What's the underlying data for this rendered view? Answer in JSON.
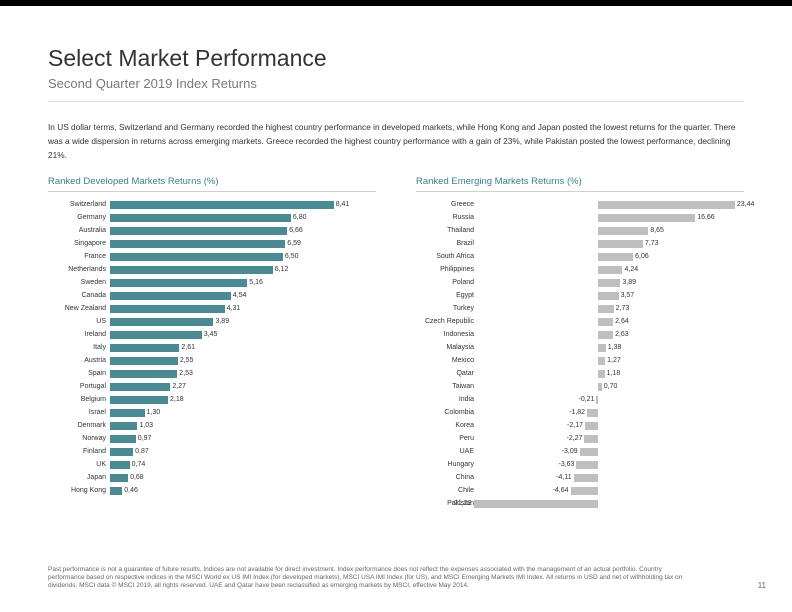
{
  "page": {
    "title": "Select Market Performance",
    "subtitle": "Second Quarter 2019 Index Returns",
    "intro": "In US dollar terms, Switzerland and Germany recorded the highest country performance in developed markets, while Hong Kong and Japan posted the lowest returns for the quarter. There was a wide dispersion in returns across emerging markets. Greece recorded the highest country performance with a gain of 23%, while Pakistan posted the lowest performance, declining 21%.",
    "footnote": "Past performance is not a guarantee of future results. Indices are not available for direct investment. Index performance does not reflect the expenses associated with the management of an actual portfolio. Country performance based on respective indices in the MSCI World ex US IMI Index (for developed markets), MSCI USA IMI Index (for US), and MSCI Emerging Markets IMI Index. All returns in USD and net of withholding tax on dividends. MSCI data © MSCI 2019, all rights reserved. UAE and Qatar have been reclassified as emerging markets by MSCI, effective May 2014.",
    "page_number": "11",
    "top_stripe_color": "#000000"
  },
  "left_chart": {
    "title": "Ranked Developed Markets Returns (%)",
    "type": "bar-horizontal",
    "bar_color": "#4b8a93",
    "scale_max": 10,
    "negative_space_pct": 0,
    "labels": [
      "Switzerland",
      "Germany",
      "Australia",
      "Singapore",
      "France",
      "Netherlands",
      "Sweden",
      "Canada",
      "New Zealand",
      "US",
      "Ireland",
      "Italy",
      "Austria",
      "Spain",
      "Portugal",
      "Belgium",
      "Israel",
      "Denmark",
      "Norway",
      "Finland",
      "UK",
      "Japan",
      "Hong Kong"
    ],
    "values_text": [
      "8,41",
      "6,80",
      "6,66",
      "6,59",
      "6,50",
      "6,12",
      "5,16",
      "4,54",
      "4,31",
      "3,89",
      "3,45",
      "2,61",
      "2,55",
      "2,53",
      "2,27",
      "2,18",
      "1,30",
      "1,03",
      "0,97",
      "0,87",
      "0,74",
      "0,68",
      "0,46"
    ],
    "values": [
      8.41,
      6.8,
      6.66,
      6.59,
      6.5,
      6.12,
      5.16,
      4.54,
      4.31,
      3.89,
      3.45,
      2.61,
      2.55,
      2.53,
      2.27,
      2.18,
      1.3,
      1.03,
      0.97,
      0.87,
      0.74,
      0.68,
      0.46
    ]
  },
  "right_chart": {
    "title": "Ranked Emerging Markets Returns (%)",
    "type": "bar-horizontal",
    "bar_color": "#bfbfbf",
    "scale_max": 25,
    "negative_space_pct": 45,
    "labels": [
      "Greece",
      "Russia",
      "Thailand",
      "Brazil",
      "South Africa",
      "Philippines",
      "Poland",
      "Egypt",
      "Turkey",
      "Czech Republic",
      "Indonesia",
      "Malaysia",
      "Mexico",
      "Qatar",
      "Taiwan",
      "India",
      "Colombia",
      "Korea",
      "Peru",
      "UAE",
      "Hungary",
      "China",
      "Chile",
      "Pakistan"
    ],
    "values_text": [
      "23,44",
      "16,66",
      "8,65",
      "7,73",
      "6,06",
      "4,24",
      "3,89",
      "3,57",
      "2,73",
      "2,64",
      "2,63",
      "1,38",
      "1,27",
      "1,18",
      "0,70",
      "-0,21",
      "-1,82",
      "-2,17",
      "-2,27",
      "-3,09",
      "-3,63",
      "-4,11",
      "-4,64",
      "-21,22"
    ],
    "values": [
      23.44,
      16.66,
      8.65,
      7.73,
      6.06,
      4.24,
      3.89,
      3.57,
      2.73,
      2.64,
      2.63,
      1.38,
      1.27,
      1.18,
      0.7,
      -0.21,
      -1.82,
      -2.17,
      -2.27,
      -3.09,
      -3.63,
      -4.11,
      -4.64,
      -21.22
    ]
  }
}
